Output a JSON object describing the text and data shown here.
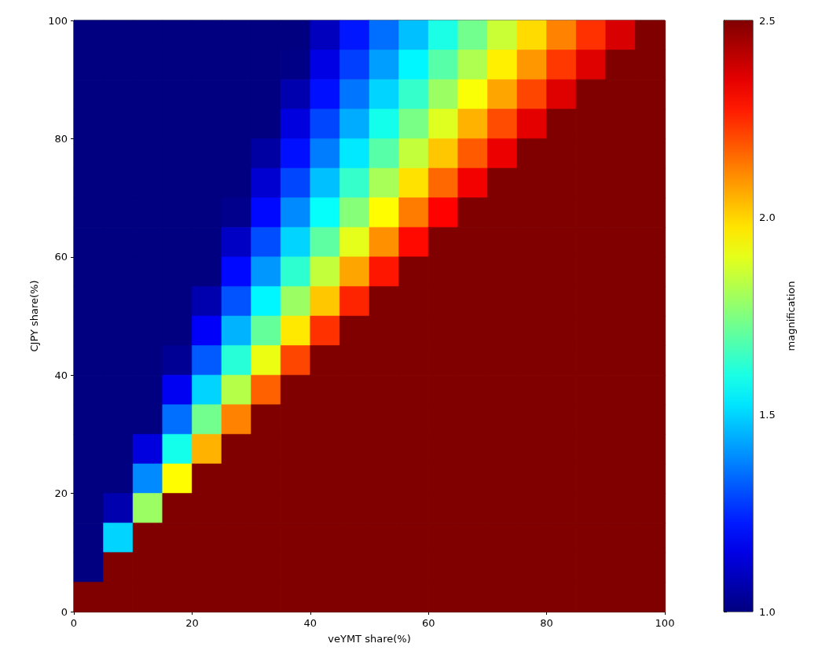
{
  "chart_data": {
    "type": "heatmap",
    "xlabel": "veYMT share(%)",
    "ylabel": "CJPY share(%)",
    "clabel": "magnification",
    "xlim": [
      0,
      100
    ],
    "ylim": [
      0,
      100
    ],
    "xticks": [
      0,
      20,
      40,
      60,
      80,
      100
    ],
    "yticks": [
      0,
      20,
      40,
      60,
      80,
      100
    ],
    "clim": [
      1,
      2.5
    ],
    "cticks": [
      {
        "value": 1,
        "label": "1.0"
      },
      {
        "value": 1.5,
        "label": "1.5"
      },
      {
        "value": 2,
        "label": "2.0"
      },
      {
        "value": 2.5,
        "label": "2.5"
      }
    ],
    "cells": [
      [
        1,
        1,
        1,
        1,
        1,
        1,
        1,
        1,
        1.09,
        1.22,
        1.35,
        1.47,
        1.6,
        1.73,
        1.86,
        1.99,
        2.12,
        2.24,
        2.37,
        2.5
      ],
      [
        1,
        1,
        1,
        1,
        1,
        1,
        1,
        1.01,
        1.15,
        1.28,
        1.42,
        1.55,
        1.69,
        1.82,
        1.96,
        2.09,
        2.23,
        2.36,
        2.5,
        2.5
      ],
      [
        1,
        1,
        1,
        1,
        1,
        1,
        1,
        1.07,
        1.21,
        1.36,
        1.5,
        1.64,
        1.79,
        1.93,
        2.07,
        2.21,
        2.36,
        2.5,
        2.5,
        2.5
      ],
      [
        1,
        1,
        1,
        1,
        1,
        1,
        1,
        1.14,
        1.29,
        1.44,
        1.59,
        1.74,
        1.89,
        2.05,
        2.2,
        2.35,
        2.5,
        2.5,
        2.5,
        2.5
      ],
      [
        1,
        1,
        1,
        1,
        1,
        1,
        1.05,
        1.21,
        1.37,
        1.53,
        1.69,
        1.85,
        2.02,
        2.18,
        2.34,
        2.5,
        2.5,
        2.5,
        2.5,
        2.5
      ],
      [
        1,
        1,
        1,
        1,
        1,
        1,
        1.12,
        1.29,
        1.47,
        1.64,
        1.81,
        1.98,
        2.16,
        2.33,
        2.5,
        2.5,
        2.5,
        2.5,
        2.5,
        2.5
      ],
      [
        1,
        1,
        1,
        1,
        1,
        1.02,
        1.2,
        1.39,
        1.57,
        1.76,
        1.94,
        2.13,
        2.31,
        2.5,
        2.5,
        2.5,
        2.5,
        2.5,
        2.5,
        2.5
      ],
      [
        1,
        1,
        1,
        1,
        1,
        1.1,
        1.3,
        1.5,
        1.7,
        1.9,
        2.1,
        2.3,
        2.5,
        2.5,
        2.5,
        2.5,
        2.5,
        2.5,
        2.5,
        2.5
      ],
      [
        1,
        1,
        1,
        1,
        1,
        1.2,
        1.41,
        1.63,
        1.85,
        2.07,
        2.28,
        2.5,
        2.5,
        2.5,
        2.5,
        2.5,
        2.5,
        2.5,
        2.5,
        2.5
      ],
      [
        1,
        1,
        1,
        1,
        1.07,
        1.31,
        1.55,
        1.79,
        2.02,
        2.26,
        2.5,
        2.5,
        2.5,
        2.5,
        2.5,
        2.5,
        2.5,
        2.5,
        2.5,
        2.5
      ],
      [
        1,
        1,
        1,
        1,
        1.18,
        1.45,
        1.71,
        1.97,
        2.24,
        2.5,
        2.5,
        2.5,
        2.5,
        2.5,
        2.5,
        2.5,
        2.5,
        2.5,
        2.5,
        2.5
      ],
      [
        1,
        1,
        1,
        1.03,
        1.32,
        1.62,
        1.91,
        2.21,
        2.5,
        2.5,
        2.5,
        2.5,
        2.5,
        2.5,
        2.5,
        2.5,
        2.5,
        2.5,
        2.5,
        2.5
      ],
      [
        1,
        1,
        1,
        1.17,
        1.5,
        1.83,
        2.17,
        2.5,
        2.5,
        2.5,
        2.5,
        2.5,
        2.5,
        2.5,
        2.5,
        2.5,
        2.5,
        2.5,
        2.5,
        2.5
      ],
      [
        1,
        1,
        1,
        1.35,
        1.73,
        2.12,
        2.5,
        2.5,
        2.5,
        2.5,
        2.5,
        2.5,
        2.5,
        2.5,
        2.5,
        2.5,
        2.5,
        2.5,
        2.5,
        2.5
      ],
      [
        1,
        1,
        1.14,
        1.59,
        2.05,
        2.5,
        2.5,
        2.5,
        2.5,
        2.5,
        2.5,
        2.5,
        2.5,
        2.5,
        2.5,
        2.5,
        2.5,
        2.5,
        2.5,
        2.5
      ],
      [
        1,
        1,
        1.39,
        1.94,
        2.5,
        2.5,
        2.5,
        2.5,
        2.5,
        2.5,
        2.5,
        2.5,
        2.5,
        2.5,
        2.5,
        2.5,
        2.5,
        2.5,
        2.5,
        2.5
      ],
      [
        1,
        1.07,
        1.79,
        2.5,
        2.5,
        2.5,
        2.5,
        2.5,
        2.5,
        2.5,
        2.5,
        2.5,
        2.5,
        2.5,
        2.5,
        2.5,
        2.5,
        2.5,
        2.5,
        2.5
      ],
      [
        1,
        1.5,
        2.5,
        2.5,
        2.5,
        2.5,
        2.5,
        2.5,
        2.5,
        2.5,
        2.5,
        2.5,
        2.5,
        2.5,
        2.5,
        2.5,
        2.5,
        2.5,
        2.5,
        2.5
      ],
      [
        1,
        2.5,
        2.5,
        2.5,
        2.5,
        2.5,
        2.5,
        2.5,
        2.5,
        2.5,
        2.5,
        2.5,
        2.5,
        2.5,
        2.5,
        2.5,
        2.5,
        2.5,
        2.5,
        2.5
      ],
      [
        2.5,
        2.5,
        2.5,
        2.5,
        2.5,
        2.5,
        2.5,
        2.5,
        2.5,
        2.5,
        2.5,
        2.5,
        2.5,
        2.5,
        2.5,
        2.5,
        2.5,
        2.5,
        2.5,
        2.5
      ]
    ]
  }
}
